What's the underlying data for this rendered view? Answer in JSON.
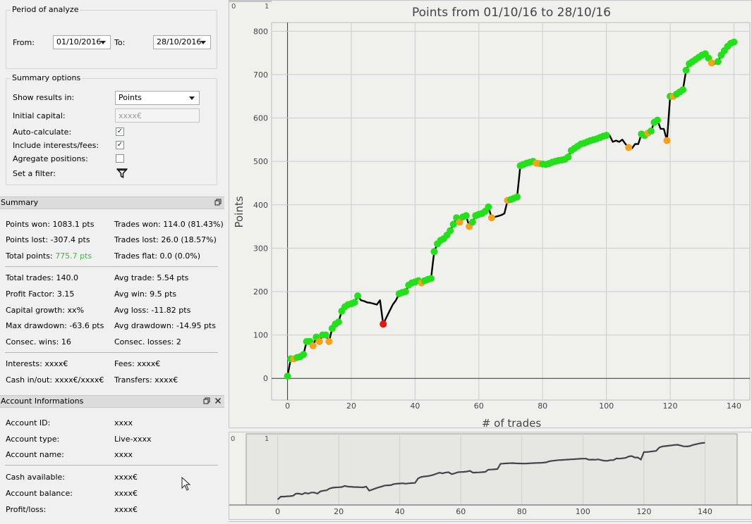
{
  "period": {
    "title": "Period of analyze",
    "from_label": "From:",
    "from_value": "01/10/2016",
    "to_label": "To:",
    "to_value": "28/10/2016"
  },
  "summary_options": {
    "title": "Summary options",
    "show_results_label": "Show results in:",
    "show_results_value": "Points",
    "initial_capital_label": "Initial capital:",
    "initial_capital_placeholder": "xxxx€",
    "auto_calc_label": "Auto-calculate:",
    "auto_calc_checked": true,
    "include_fees_label": "Include interests/fees:",
    "include_fees_checked": true,
    "aggregate_label": "Agregate positions:",
    "aggregate_checked": false,
    "filter_label": "Set a filter:"
  },
  "summary": {
    "title": "Summary",
    "points_won": "Points won: 1083.1 pts",
    "trades_won": "Trades won: 114.0 (81.43%)",
    "points_lost": "Points lost: -307.4 pts",
    "trades_lost": "Trades lost: 26.0 (18.57%)",
    "total_points_label": "Total points:",
    "total_points_value": "775.7 pts",
    "trades_flat": "Trades flat: 0.0 (0.0%)",
    "total_trades": "Total trades: 140.0",
    "avg_trade": "Avg trade: 5.54 pts",
    "profit_factor": "Profit Factor: 3.15",
    "avg_win": "Avg win: 9.5 pts",
    "capital_growth": "Capital growth: xx%",
    "avg_loss": "Avg loss: -11.82 pts",
    "max_drawdown": "Max drawdown: -63.6 pts",
    "avg_drawdown": "Avg drawdown: -14.95 pts",
    "consec_wins": "Consec. wins: 16",
    "consec_losses": "Consec. losses: 2",
    "interests": "Interests: xxxx€",
    "fees": "Fees: xxxx€",
    "cash_in_out": "Cash in/out: xxxx€/xxxx€",
    "transfers": "Transfers: xxxx€"
  },
  "account": {
    "title": "Account Informations",
    "rows": [
      {
        "label": "Account ID:",
        "value": "xxxx"
      },
      {
        "label": "Account type:",
        "value": "Live-xxxx"
      },
      {
        "label": "Account name:",
        "value": "xxxx"
      },
      {
        "label": "Cash available:",
        "value": "xxxx€"
      },
      {
        "label": "Account balance:",
        "value": "xxxx€"
      },
      {
        "label": "Profit/loss:",
        "value": "xxxx€"
      }
    ]
  },
  "icons": {
    "restore": "restore-icon",
    "close": "close-icon",
    "filter": "filter-icon",
    "dropdown": "chevron-down-icon",
    "cursor": "mouse-cursor-icon"
  },
  "colors": {
    "win_marker": "#22e01a",
    "loss_marker": "#f5a11a",
    "max_loss_marker": "#ee1111",
    "equity_line": "#000000",
    "total_points_text": "#3eb44a"
  },
  "chart_data": {
    "type": "line",
    "title": "Points from 01/10/16 to 28/10/16",
    "xlabel": "# of trades",
    "ylabel": "Points",
    "xlim": [
      -5,
      145
    ],
    "ylim": [
      -50,
      820
    ],
    "xticks": [
      0,
      20,
      40,
      60,
      80,
      100,
      120,
      140
    ],
    "yticks": [
      0,
      100,
      200,
      300,
      400,
      500,
      600,
      700,
      800
    ],
    "grid": true,
    "x": [
      0,
      1,
      2,
      3,
      4,
      5,
      6,
      7,
      8,
      9,
      10,
      11,
      12,
      13,
      14,
      15,
      16,
      17,
      18,
      19,
      20,
      21,
      22,
      23,
      24,
      25,
      26,
      27,
      28,
      29,
      30,
      31,
      32,
      33,
      34,
      35,
      36,
      37,
      38,
      39,
      40,
      41,
      42,
      43,
      44,
      45,
      46,
      47,
      48,
      49,
      50,
      51,
      52,
      53,
      54,
      55,
      56,
      57,
      58,
      59,
      60,
      61,
      62,
      63,
      64,
      65,
      66,
      67,
      68,
      69,
      70,
      71,
      72,
      73,
      74,
      75,
      76,
      77,
      78,
      79,
      80,
      81,
      82,
      83,
      84,
      85,
      86,
      87,
      88,
      89,
      90,
      91,
      92,
      93,
      94,
      95,
      96,
      97,
      98,
      99,
      100,
      101,
      102,
      103,
      104,
      105,
      106,
      107,
      108,
      109,
      110,
      111,
      112,
      113,
      114,
      115,
      116,
      117,
      118,
      119,
      120,
      121,
      122,
      123,
      124,
      125,
      126,
      127,
      128,
      129,
      130,
      131,
      132,
      133,
      134,
      135,
      136,
      137,
      138,
      139,
      140
    ],
    "series": [
      {
        "values": [
          5,
          45,
          45,
          48,
          50,
          55,
          85,
          85,
          75,
          95,
          85,
          100,
          100,
          85,
          115,
          125,
          130,
          155,
          165,
          170,
          172,
          175,
          190,
          180,
          178,
          175,
          174,
          172,
          170,
          180,
          125,
          140,
          155,
          170,
          180,
          195,
          198,
          200,
          215,
          220,
          222,
          225,
          220,
          225,
          228,
          230,
          292,
          310,
          318,
          322,
          330,
          340,
          355,
          370,
          360,
          372,
          375,
          350,
          360,
          375,
          378,
          380,
          385,
          395,
          370,
          372,
          374,
          376,
          380,
          410,
          412,
          415,
          418,
          490,
          493,
          496,
          498,
          500,
          496,
          495,
          494,
          493,
          495,
          498,
          500,
          502,
          503,
          505,
          510,
          525,
          530,
          535,
          540,
          542,
          545,
          548,
          550,
          552,
          555,
          558,
          560,
          560,
          545,
          548,
          545,
          550,
          540,
          532,
          530,
          540,
          540,
          563,
          560,
          565,
          570,
          590,
          595,
          575,
          575,
          548,
          650,
          650,
          655,
          660,
          665,
          710,
          725,
          730,
          735,
          740,
          745,
          748,
          738,
          727,
          725,
          730,
          745,
          755,
          765,
          772,
          775
        ],
        "markers": [
          "win",
          "win",
          "loss",
          "win",
          "win",
          "win",
          "win",
          "win",
          "loss",
          "win",
          "loss",
          "win",
          "win",
          "loss",
          "win",
          "win",
          "win",
          "win",
          "win",
          "win",
          "win",
          "win",
          "win",
          "none",
          "none",
          "none",
          "none",
          "none",
          "none",
          "none",
          "maxloss",
          "none",
          "none",
          "none",
          "none",
          "win",
          "win",
          "win",
          "win",
          "win",
          "win",
          "win",
          "loss",
          "win",
          "win",
          "win",
          "win",
          "win",
          "win",
          "win",
          "win",
          "win",
          "win",
          "win",
          "loss",
          "win",
          "win",
          "loss",
          "win",
          "win",
          "win",
          "win",
          "win",
          "win",
          "loss",
          "none",
          "none",
          "none",
          "none",
          "loss",
          "win",
          "win",
          "win",
          "win",
          "win",
          "win",
          "win",
          "win",
          "loss",
          "loss",
          "win",
          "win",
          "win",
          "win",
          "win",
          "win",
          "win",
          "win",
          "win",
          "win",
          "win",
          "win",
          "win",
          "win",
          "win",
          "win",
          "win",
          "win",
          "win",
          "win",
          "win",
          "none",
          "none",
          "none",
          "none",
          "none",
          "none",
          "loss",
          "none",
          "none",
          "none",
          "win",
          "win",
          "loss",
          "win",
          "win",
          "win",
          "none",
          "none",
          "loss",
          "win",
          "loss",
          "win",
          "win",
          "win",
          "win",
          "win",
          "win",
          "win",
          "win",
          "win",
          "win",
          "win",
          "loss",
          "none",
          "win",
          "win",
          "win",
          "win",
          "win",
          "win"
        ]
      }
    ],
    "navigator": {
      "xticks": [
        0,
        20,
        40,
        60,
        80,
        100,
        120,
        140
      ],
      "corner_labels": [
        "0",
        "1"
      ]
    }
  }
}
